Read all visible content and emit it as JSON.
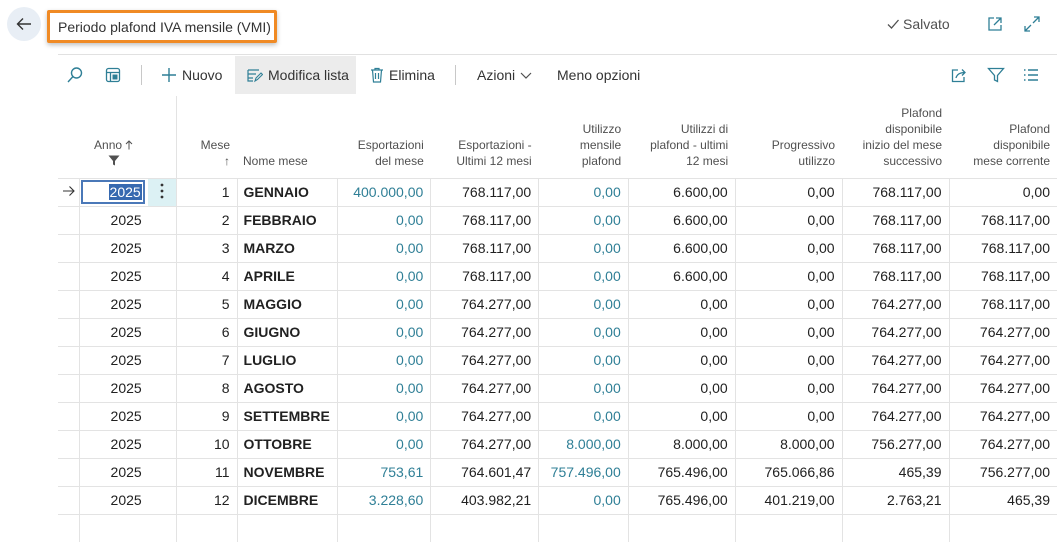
{
  "window": {
    "title": "Periodo plafond IVA mensile (VMI)",
    "saved_label": "Salvato"
  },
  "toolbar": {
    "new_label": "Nuovo",
    "edit_list_label": "Modifica lista",
    "delete_label": "Elimina",
    "actions_label": "Azioni",
    "fewer_options_label": "Meno opzioni"
  },
  "table": {
    "headers": {
      "anno": "Anno",
      "mese_1": "Mese",
      "mese_2": "↑",
      "nome_mese": "Nome mese",
      "esportazioni_1": "Esportazioni",
      "esportazioni_2": "del mese",
      "esp12_1": "Esportazioni -",
      "esp12_2": "Ultimi 12 mesi",
      "utilizzo_1": "Utilizzo",
      "utilizzo_2": "mensile",
      "utilizzo_3": "plafond",
      "utilizzi12_1": "Utilizzi di",
      "utilizzi12_2": "plafond - ultimi",
      "utilizzi12_3": "12 mesi",
      "progressivo_1": "Progressivo",
      "progressivo_2": "utilizzo",
      "plafond_succ_1": "Plafond",
      "plafond_succ_2": "disponibile",
      "plafond_succ_3": "inizio del mese",
      "plafond_succ_4": "successivo",
      "plafond_corr_1": "Plafond",
      "plafond_corr_2": "disponibile",
      "plafond_corr_3": "mese corrente"
    },
    "rows": [
      {
        "anno": "2025",
        "mese": "1",
        "nome": "GENNAIO",
        "esp": "400.000,00",
        "esp12": "768.117,00",
        "util": "0,00",
        "util12": "6.600,00",
        "prog": "0,00",
        "succ": "768.117,00",
        "corr": "0,00"
      },
      {
        "anno": "2025",
        "mese": "2",
        "nome": "FEBBRAIO",
        "esp": "0,00",
        "esp12": "768.117,00",
        "util": "0,00",
        "util12": "6.600,00",
        "prog": "0,00",
        "succ": "768.117,00",
        "corr": "768.117,00"
      },
      {
        "anno": "2025",
        "mese": "3",
        "nome": "MARZO",
        "esp": "0,00",
        "esp12": "768.117,00",
        "util": "0,00",
        "util12": "6.600,00",
        "prog": "0,00",
        "succ": "768.117,00",
        "corr": "768.117,00"
      },
      {
        "anno": "2025",
        "mese": "4",
        "nome": "APRILE",
        "esp": "0,00",
        "esp12": "768.117,00",
        "util": "0,00",
        "util12": "6.600,00",
        "prog": "0,00",
        "succ": "768.117,00",
        "corr": "768.117,00"
      },
      {
        "anno": "2025",
        "mese": "5",
        "nome": "MAGGIO",
        "esp": "0,00",
        "esp12": "764.277,00",
        "util": "0,00",
        "util12": "0,00",
        "prog": "0,00",
        "succ": "764.277,00",
        "corr": "768.117,00"
      },
      {
        "anno": "2025",
        "mese": "6",
        "nome": "GIUGNO",
        "esp": "0,00",
        "esp12": "764.277,00",
        "util": "0,00",
        "util12": "0,00",
        "prog": "0,00",
        "succ": "764.277,00",
        "corr": "764.277,00"
      },
      {
        "anno": "2025",
        "mese": "7",
        "nome": "LUGLIO",
        "esp": "0,00",
        "esp12": "764.277,00",
        "util": "0,00",
        "util12": "0,00",
        "prog": "0,00",
        "succ": "764.277,00",
        "corr": "764.277,00"
      },
      {
        "anno": "2025",
        "mese": "8",
        "nome": "AGOSTO",
        "esp": "0,00",
        "esp12": "764.277,00",
        "util": "0,00",
        "util12": "0,00",
        "prog": "0,00",
        "succ": "764.277,00",
        "corr": "764.277,00"
      },
      {
        "anno": "2025",
        "mese": "9",
        "nome": "SETTEMBRE",
        "esp": "0,00",
        "esp12": "764.277,00",
        "util": "0,00",
        "util12": "0,00",
        "prog": "0,00",
        "succ": "764.277,00",
        "corr": "764.277,00"
      },
      {
        "anno": "2025",
        "mese": "10",
        "nome": "OTTOBRE",
        "esp": "0,00",
        "esp12": "764.277,00",
        "util": "8.000,00",
        "util12": "8.000,00",
        "prog": "8.000,00",
        "succ": "756.277,00",
        "corr": "764.277,00"
      },
      {
        "anno": "2025",
        "mese": "11",
        "nome": "NOVEMBRE",
        "esp": "753,61",
        "esp12": "764.601,47",
        "util": "757.496,00",
        "util12": "765.496,00",
        "prog": "765.066,86",
        "succ": "465,39",
        "corr": "756.277,00"
      },
      {
        "anno": "2025",
        "mese": "12",
        "nome": "DICEMBRE",
        "esp": "3.228,60",
        "esp12": "403.982,21",
        "util": "0,00",
        "util12": "765.496,00",
        "prog": "401.219,00",
        "succ": "2.763,21",
        "corr": "465,39"
      }
    ]
  },
  "icons": {
    "back": "arrow-left-icon",
    "saved": "checkmark-icon",
    "open_new": "open-in-new-window-icon",
    "expand": "expand-icon",
    "search": "search-icon",
    "filter_pane": "filter-pane-icon",
    "add": "plus-icon",
    "edit_list": "edit-list-icon",
    "delete": "trash-icon",
    "share": "share-icon",
    "filter": "filter-icon",
    "list_view": "list-view-icon",
    "row_arrow": "row-pointer-arrow-icon",
    "row_menu": "more-vertical-icon"
  },
  "colors": {
    "accent": "#2f7f96",
    "highlight_border": "#f08a24",
    "selection": "#3669b0"
  }
}
